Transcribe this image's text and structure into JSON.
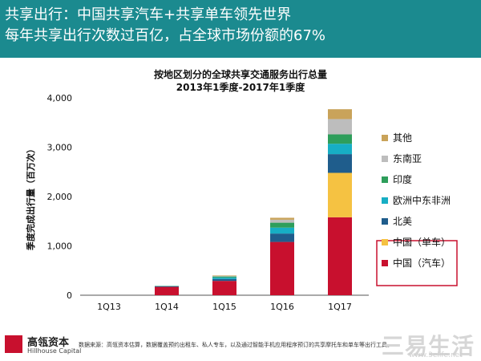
{
  "header": {
    "line1": "共享出行：中国共享汽车+共享单车领先世界",
    "line2": "每年共享出行次数过百亿，占全球市场份额的67%"
  },
  "chart_data": {
    "type": "bar",
    "stacked": true,
    "title": "按地区划分的全球共享交通服务出行总量",
    "subtitle": "2013年1季度-2017年1季度",
    "xlabel": "",
    "ylabel": "季度完成出行量（百万次）",
    "ylim": [
      0,
      4000
    ],
    "yticks": [
      "0",
      "1,000",
      "2,000",
      "3,000",
      "4,000"
    ],
    "categories": [
      "1Q13",
      "1Q14",
      "1Q15",
      "1Q16",
      "1Q17"
    ],
    "grid": false,
    "legend_position": "right",
    "series": [
      {
        "name": "中国（汽车）",
        "color": "#c8102e",
        "values": [
          0,
          170,
          290,
          1080,
          1580
        ]
      },
      {
        "name": "中国（单车）",
        "color": "#f5c242",
        "values": [
          0,
          0,
          0,
          0,
          900
        ]
      },
      {
        "name": "北美",
        "color": "#1f5d8c",
        "values": [
          0,
          10,
          40,
          170,
          380
        ]
      },
      {
        "name": "欧洲中东非洲",
        "color": "#17aec4",
        "values": [
          0,
          5,
          30,
          120,
          210
        ]
      },
      {
        "name": "印度",
        "color": "#2e9e5b",
        "values": [
          0,
          5,
          20,
          100,
          190
        ]
      },
      {
        "name": "东南亚",
        "color": "#bdbdbd",
        "values": [
          0,
          0,
          10,
          60,
          310
        ]
      },
      {
        "name": "其他",
        "color": "#c9a35a",
        "values": [
          0,
          0,
          10,
          40,
          200
        ]
      }
    ],
    "legend_order": [
      "其他",
      "东南亚",
      "印度",
      "欧洲中东非洲",
      "北美",
      "中国（单车）",
      "中国（汽车）"
    ],
    "highlight_box_items": [
      "中国（单车）",
      "中国（汽车）"
    ],
    "highlight_color": "#c8102e"
  },
  "footer": {
    "company_cn": "高瓴资本",
    "company_en": "Hillhouse Capital",
    "source": "数据来源：高瓴资本估算，数据覆盖预约出租车、私人专车，以及通过智能手机应用程序预订的共享摩托车和单车等出行工具。",
    "watermark": "三易生活",
    "watermark_url": "www.3elife.net"
  }
}
